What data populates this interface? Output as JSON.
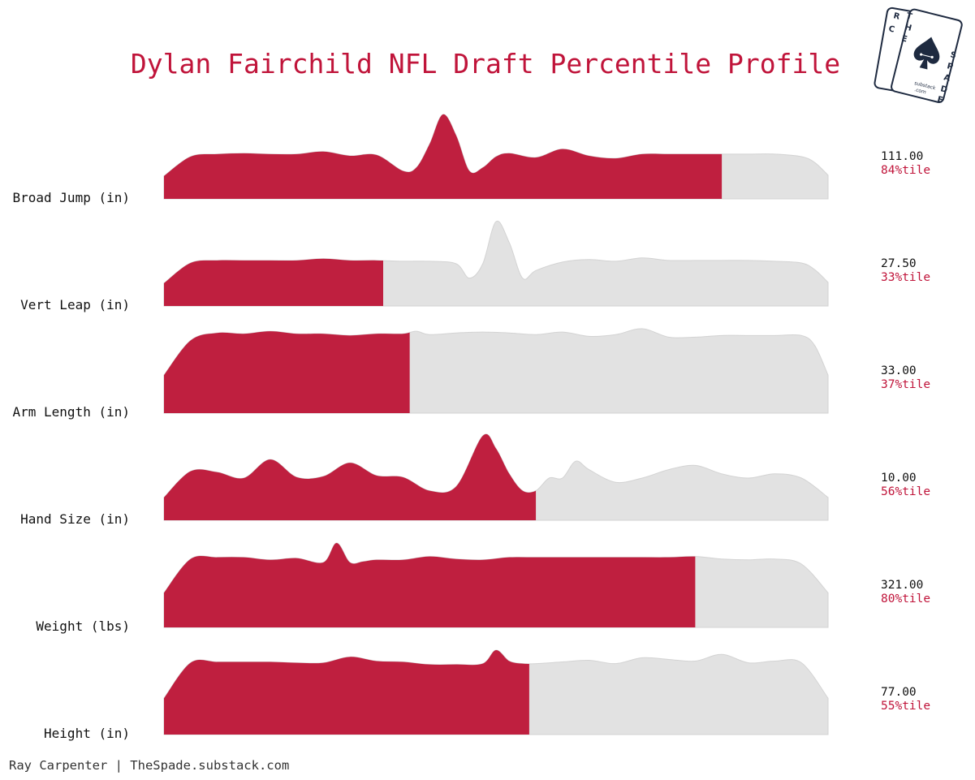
{
  "chart_data": {
    "type": "area",
    "title": "Dylan Fairchild NFL Draft Percentile Profile",
    "percentile_suffix": "%tile",
    "colors": {
      "highlight": "#bf1f3f",
      "background_curve": "#e2e2e2",
      "background_stroke": "#d3d3d3",
      "title": "#c0143a",
      "percentile_text": "#c0143a"
    },
    "metrics": [
      {
        "label": "Broad Jump (in)",
        "value": "111.00",
        "percentile": 84,
        "density_x": [
          0,
          0.04,
          0.08,
          0.12,
          0.16,
          0.2,
          0.24,
          0.28,
          0.32,
          0.36,
          0.38,
          0.4,
          0.42,
          0.44,
          0.46,
          0.48,
          0.5,
          0.52,
          0.56,
          0.6,
          0.64,
          0.68,
          0.72,
          0.76,
          0.8,
          0.84,
          0.88,
          0.92,
          0.96,
          0.98,
          1.0
        ],
        "density_y": [
          0.27,
          0.5,
          0.53,
          0.54,
          0.53,
          0.53,
          0.56,
          0.51,
          0.52,
          0.33,
          0.37,
          0.65,
          1.0,
          0.75,
          0.33,
          0.37,
          0.5,
          0.54,
          0.49,
          0.59,
          0.51,
          0.48,
          0.53,
          0.53,
          0.53,
          0.53,
          0.53,
          0.53,
          0.5,
          0.43,
          0.28
        ]
      },
      {
        "label": "Vert Leap (in)",
        "value": "27.50",
        "percentile": 33,
        "density_x": [
          0,
          0.04,
          0.08,
          0.12,
          0.16,
          0.2,
          0.24,
          0.28,
          0.32,
          0.36,
          0.4,
          0.44,
          0.46,
          0.48,
          0.5,
          0.52,
          0.54,
          0.56,
          0.6,
          0.64,
          0.68,
          0.72,
          0.76,
          0.8,
          0.84,
          0.88,
          0.92,
          0.96,
          0.98,
          1.0
        ],
        "density_y": [
          0.27,
          0.51,
          0.54,
          0.54,
          0.54,
          0.54,
          0.56,
          0.54,
          0.54,
          0.53,
          0.53,
          0.5,
          0.33,
          0.5,
          1.0,
          0.75,
          0.33,
          0.42,
          0.52,
          0.55,
          0.53,
          0.57,
          0.54,
          0.54,
          0.54,
          0.54,
          0.53,
          0.51,
          0.43,
          0.28
        ]
      },
      {
        "label": "Arm Length (in)",
        "value": "33.00",
        "percentile": 37,
        "density_x": [
          0,
          0.04,
          0.08,
          0.12,
          0.16,
          0.2,
          0.24,
          0.28,
          0.32,
          0.36,
          0.38,
          0.4,
          0.44,
          0.48,
          0.52,
          0.56,
          0.6,
          0.64,
          0.68,
          0.72,
          0.76,
          0.8,
          0.84,
          0.88,
          0.92,
          0.96,
          0.98,
          1.0
        ],
        "density_y": [
          0.45,
          0.86,
          0.95,
          0.94,
          0.97,
          0.94,
          0.94,
          0.92,
          0.94,
          0.94,
          0.97,
          0.93,
          0.95,
          0.96,
          0.95,
          0.93,
          0.96,
          0.91,
          0.93,
          1.0,
          0.9,
          0.9,
          0.92,
          0.92,
          0.92,
          0.92,
          0.8,
          0.45
        ]
      },
      {
        "label": "Hand Size (in)",
        "value": "10.00",
        "percentile": 56,
        "density_x": [
          0,
          0.04,
          0.08,
          0.12,
          0.16,
          0.2,
          0.24,
          0.28,
          0.32,
          0.36,
          0.4,
          0.44,
          0.48,
          0.5,
          0.52,
          0.54,
          0.56,
          0.58,
          0.6,
          0.62,
          0.64,
          0.68,
          0.72,
          0.76,
          0.8,
          0.84,
          0.88,
          0.92,
          0.96,
          1.0
        ],
        "density_y": [
          0.27,
          0.58,
          0.57,
          0.5,
          0.72,
          0.51,
          0.52,
          0.68,
          0.53,
          0.51,
          0.35,
          0.4,
          1.0,
          0.85,
          0.55,
          0.35,
          0.35,
          0.5,
          0.5,
          0.7,
          0.6,
          0.45,
          0.5,
          0.6,
          0.65,
          0.55,
          0.5,
          0.55,
          0.5,
          0.27
        ]
      },
      {
        "label": "Weight (lbs)",
        "value": "321.00",
        "percentile": 80,
        "density_x": [
          0,
          0.04,
          0.08,
          0.12,
          0.16,
          0.2,
          0.24,
          0.26,
          0.28,
          0.3,
          0.32,
          0.36,
          0.4,
          0.44,
          0.48,
          0.52,
          0.56,
          0.6,
          0.64,
          0.68,
          0.72,
          0.76,
          0.8,
          0.84,
          0.88,
          0.92,
          0.96,
          1.0
        ],
        "density_y": [
          0.41,
          0.81,
          0.83,
          0.83,
          0.8,
          0.82,
          0.77,
          1.0,
          0.77,
          0.78,
          0.8,
          0.8,
          0.84,
          0.81,
          0.8,
          0.83,
          0.83,
          0.83,
          0.83,
          0.83,
          0.83,
          0.83,
          0.84,
          0.81,
          0.8,
          0.81,
          0.75,
          0.41
        ]
      },
      {
        "label": "Height (in)",
        "value": "77.00",
        "percentile": 55,
        "density_x": [
          0,
          0.04,
          0.08,
          0.12,
          0.16,
          0.2,
          0.24,
          0.28,
          0.32,
          0.36,
          0.4,
          0.44,
          0.48,
          0.5,
          0.52,
          0.54,
          0.56,
          0.6,
          0.64,
          0.68,
          0.72,
          0.76,
          0.8,
          0.84,
          0.88,
          0.92,
          0.96,
          1.0
        ],
        "density_y": [
          0.43,
          0.85,
          0.86,
          0.86,
          0.86,
          0.85,
          0.85,
          0.92,
          0.87,
          0.86,
          0.83,
          0.83,
          0.84,
          1.0,
          0.87,
          0.84,
          0.84,
          0.86,
          0.88,
          0.84,
          0.91,
          0.89,
          0.87,
          0.95,
          0.85,
          0.87,
          0.85,
          0.43
        ]
      }
    ]
  },
  "footer": {
    "credit": "Ray Carpenter | TheSpade.substack.com"
  },
  "logo": {
    "letters_left_card": [
      "R",
      "C",
      "E"
    ],
    "letters_right_card": [
      "T",
      "H",
      "E",
      "S",
      "P",
      "A",
      "D",
      "E"
    ],
    "small_text_1": "substack",
    "small_text_2": ".com"
  }
}
